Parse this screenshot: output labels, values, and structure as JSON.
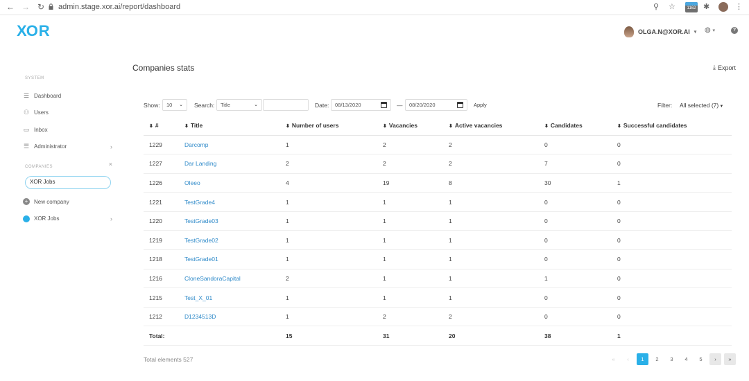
{
  "browser": {
    "url": "admin.stage.xor.ai/report/dashboard",
    "ext_badge": "1162"
  },
  "header": {
    "logo_x": "X",
    "logo_or": "OR",
    "user_email": "OLGA.N@XOR.AI"
  },
  "sidebar": {
    "system_title": "SYSTEM",
    "items": [
      {
        "label": "Dashboard",
        "icon": "list-icon"
      },
      {
        "label": "Users",
        "icon": "user-icon"
      },
      {
        "label": "Inbox",
        "icon": "inbox-icon"
      },
      {
        "label": "Administrator",
        "icon": "admin-icon"
      }
    ],
    "companies_title": "COMPANIES",
    "search_value": "XOR Jobs",
    "new_company": "New company",
    "company_item": "XOR Jobs"
  },
  "main": {
    "title": "Companies stats",
    "export": "Export",
    "filters": {
      "show_label": "Show:",
      "show_value": "10",
      "search_label": "Search:",
      "search_field": "Title",
      "date_label": "Date:",
      "date_from": "08/13/2020",
      "date_sep": "—",
      "date_to": "08/20/2020",
      "apply": "Apply",
      "filter_label": "Filter:",
      "filter_value": "All selected (7)"
    },
    "columns": [
      "#",
      "Title",
      "Number of users",
      "Vacancies",
      "Active vacancies",
      "Candidates",
      "Successful candidates"
    ],
    "rows": [
      [
        "1229",
        "Darcomp",
        "1",
        "2",
        "2",
        "0",
        "0"
      ],
      [
        "1227",
        "Dar Landing",
        "2",
        "2",
        "2",
        "7",
        "0"
      ],
      [
        "1226",
        "Oleeo",
        "4",
        "19",
        "8",
        "30",
        "1"
      ],
      [
        "1221",
        "TestGrade4",
        "1",
        "1",
        "1",
        "0",
        "0"
      ],
      [
        "1220",
        "TestGrade03",
        "1",
        "1",
        "1",
        "0",
        "0"
      ],
      [
        "1219",
        "TestGrade02",
        "1",
        "1",
        "1",
        "0",
        "0"
      ],
      [
        "1218",
        "TestGrade01",
        "1",
        "1",
        "1",
        "0",
        "0"
      ],
      [
        "1216",
        "CloneSandoraCapital",
        "2",
        "1",
        "1",
        "1",
        "0"
      ],
      [
        "1215",
        "Test_X_01",
        "1",
        "1",
        "1",
        "0",
        "0"
      ],
      [
        "1212",
        "D1234513D",
        "1",
        "2",
        "2",
        "0",
        "0"
      ]
    ],
    "total": [
      "Total:",
      "",
      "15",
      "31",
      "20",
      "38",
      "1"
    ],
    "total_elements": "Total elements 527",
    "pages": [
      "1",
      "2",
      "3",
      "4",
      "5"
    ]
  },
  "colors": {
    "accent": "#2ab0e8",
    "link": "#2f8ac9"
  }
}
